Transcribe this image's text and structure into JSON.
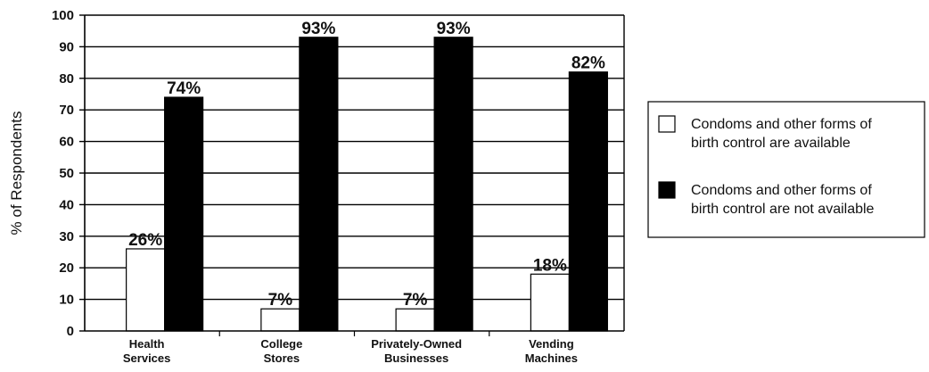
{
  "chart_data": {
    "type": "bar",
    "categories": [
      [
        "Health",
        "Services"
      ],
      [
        "College",
        "Stores"
      ],
      [
        "Privately-Owned",
        "Businesses"
      ],
      [
        "Vending",
        "Machines"
      ]
    ],
    "series": [
      {
        "name": "Condoms and other forms of birth control are available",
        "legend_lines": [
          "Condoms and other forms of",
          "birth control are available"
        ],
        "values": [
          26,
          7,
          7,
          18
        ],
        "value_labels": [
          "26%",
          "7%",
          "7%",
          "18%"
        ],
        "color": "#ffffff"
      },
      {
        "name": "Condoms and other forms of birth control are not available",
        "legend_lines": [
          "Condoms and other forms of",
          "birth control are not available"
        ],
        "values": [
          74,
          93,
          93,
          82
        ],
        "value_labels": [
          "74%",
          "93%",
          "93%",
          "82%"
        ],
        "color": "#000000"
      }
    ],
    "title": "",
    "xlabel": "",
    "ylabel": "% of Respondents",
    "ylim": [
      0,
      100
    ],
    "yticks": [
      "0",
      "10",
      "20",
      "30",
      "40",
      "50",
      "60",
      "70",
      "80",
      "90",
      "100"
    ],
    "grid": true,
    "legend_position": "right"
  }
}
